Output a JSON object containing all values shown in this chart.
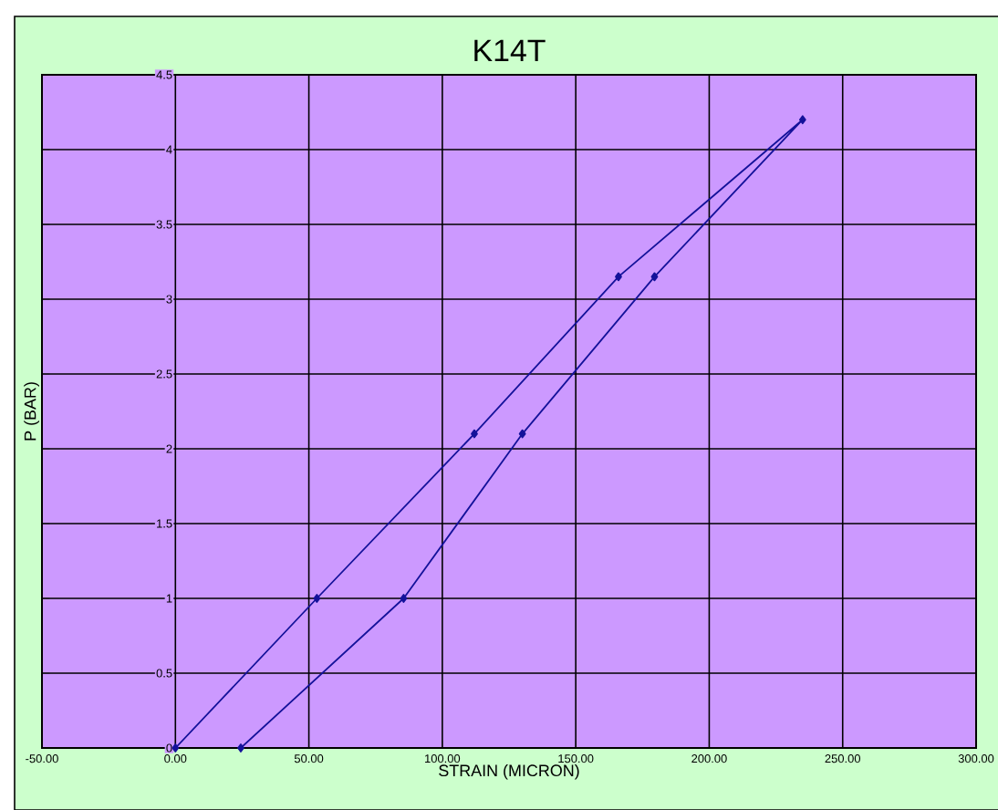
{
  "chart_data": {
    "type": "line",
    "title": "K14T",
    "xlabel": "STRAIN (MICRON)",
    "ylabel": "P (BAR)",
    "series": [
      {
        "color": "#14129a",
        "x": [
          0,
          53,
          112,
          166,
          235,
          179.5,
          130,
          85.5,
          24.5
        ],
        "values": [
          0,
          1,
          2.1,
          3.15,
          4.2,
          3.15,
          2.1,
          1,
          0
        ]
      }
    ],
    "marker": "diamond",
    "line_style": "solid",
    "grid": true,
    "xlim": [
      -50,
      300
    ],
    "xticks": [
      {
        "value": -50,
        "label": "-50.00"
      },
      {
        "value": 0,
        "label": "0.00"
      },
      {
        "value": 50,
        "label": "50.00"
      },
      {
        "value": 100,
        "label": "100.00"
      },
      {
        "value": 150,
        "label": "150.00"
      },
      {
        "value": 200,
        "label": "200.00"
      },
      {
        "value": 250,
        "label": "250.00"
      },
      {
        "value": 300,
        "label": "300.00"
      }
    ],
    "ylim": [
      0,
      4.5
    ],
    "yticks": [
      0,
      0.5,
      1,
      1.5,
      2,
      2.5,
      3,
      3.5,
      4,
      4.5
    ]
  }
}
